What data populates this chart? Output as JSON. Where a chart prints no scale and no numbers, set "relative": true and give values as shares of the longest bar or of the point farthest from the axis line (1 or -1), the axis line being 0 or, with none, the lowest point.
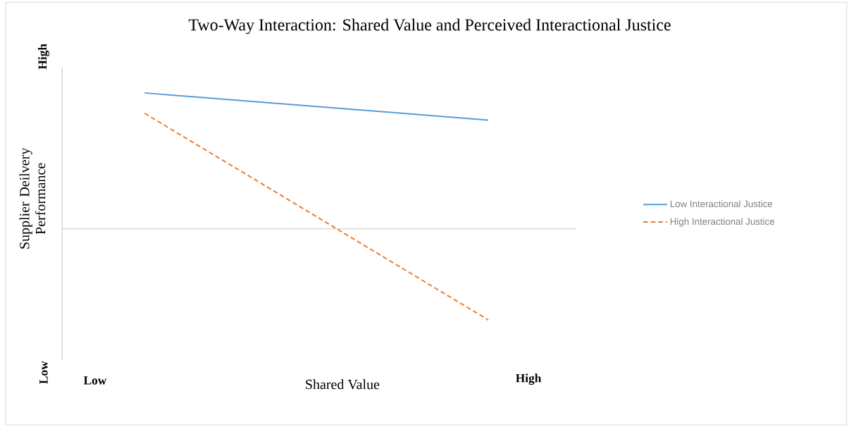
{
  "chart_data": {
    "type": "line",
    "title": "Two-Way Interaction:  Shared Value and Perceived Interactional  Justice",
    "xlabel": "Shared Value",
    "ylabel": "Supplier Deilvery Performance",
    "relative": true,
    "categories": [
      null,
      null
    ],
    "series": [
      {
        "name": "Low Interactional Justice",
        "color": "#5b9bd5",
        "line_style": "solid",
        "values": [
          1,
          0.8
        ]
      },
      {
        "name": "High Interactional Justice",
        "color": "#ed7d31",
        "line_style": "dashed",
        "values": [
          0.85,
          -0.67
        ]
      }
    ],
    "legend": "right",
    "annotations": [
      "High",
      "Low",
      "Low",
      "High"
    ]
  }
}
